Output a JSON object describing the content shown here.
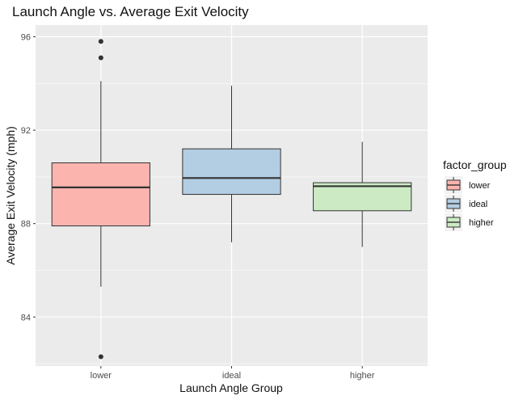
{
  "chart_data": {
    "type": "boxplot",
    "title": "Launch Angle vs. Average Exit Velocity",
    "xlabel": "Launch Angle Group",
    "ylabel": "Average Exit Velocity (mph)",
    "ylim": [
      81.9,
      96.5
    ],
    "yticks": [
      84,
      88,
      92,
      96
    ],
    "grid": true,
    "legend": {
      "title": "factor_group",
      "placement": "right"
    },
    "categories": [
      "lower",
      "ideal",
      "higher"
    ],
    "series": [
      {
        "name": "lower",
        "color": "#FBB4AE",
        "whisker_low": 85.3,
        "q1": 87.9,
        "median": 89.55,
        "q3": 90.6,
        "whisker_high": 94.1,
        "outliers": [
          82.3,
          95.1,
          95.8
        ]
      },
      {
        "name": "ideal",
        "color": "#B3CDE3",
        "whisker_low": 87.2,
        "q1": 89.25,
        "median": 89.95,
        "q3": 91.2,
        "whisker_high": 93.9,
        "outliers": []
      },
      {
        "name": "higher",
        "color": "#CCEBC5",
        "whisker_low": 87.0,
        "q1": 88.55,
        "median": 89.6,
        "q3": 89.75,
        "whisker_high": 91.5,
        "outliers": []
      }
    ]
  }
}
